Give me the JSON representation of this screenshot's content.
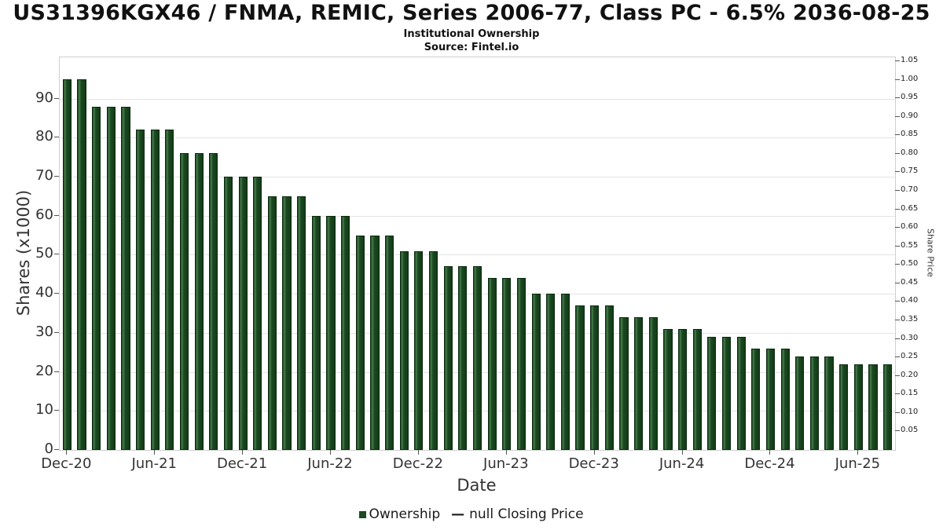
{
  "header": {
    "title": "US31396KGX46 / FNMA, REMIC, Series 2006-77, Class PC - 6.5% 2036-08-25",
    "subtitle": "Institutional Ownership",
    "source": "Source: Fintel.io"
  },
  "chart_data": {
    "type": "bar",
    "title": "Institutional Ownership",
    "xlabel": "Date",
    "ylabel_left": "Shares (x1000)",
    "ylabel_right": "Share Price",
    "categories": [
      "Dec-20",
      "Jan-21",
      "Feb-21",
      "Mar-21",
      "Apr-21",
      "May-21",
      "Jun-21",
      "Jul-21",
      "Aug-21",
      "Sep-21",
      "Oct-21",
      "Nov-21",
      "Dec-21",
      "Jan-22",
      "Feb-22",
      "Mar-22",
      "Apr-22",
      "May-22",
      "Jun-22",
      "Jul-22",
      "Aug-22",
      "Sep-22",
      "Oct-22",
      "Nov-22",
      "Dec-22",
      "Jan-23",
      "Feb-23",
      "Mar-23",
      "Apr-23",
      "May-23",
      "Jun-23",
      "Jul-23",
      "Aug-23",
      "Sep-23",
      "Oct-23",
      "Nov-23",
      "Dec-23",
      "Jan-24",
      "Feb-24",
      "Mar-24",
      "Apr-24",
      "May-24",
      "Jun-24",
      "Jul-24",
      "Aug-24",
      "Sep-24",
      "Oct-24",
      "Nov-24",
      "Dec-24",
      "Jan-25",
      "Feb-25",
      "Mar-25",
      "Apr-25",
      "May-25",
      "Jun-25",
      "Jul-25",
      "Aug-25"
    ],
    "values": [
      95,
      95,
      88,
      88,
      88,
      82,
      82,
      82,
      76,
      76,
      76,
      70,
      70,
      70,
      65,
      65,
      65,
      60,
      60,
      60,
      55,
      55,
      55,
      51,
      51,
      51,
      47,
      47,
      47,
      44,
      44,
      44,
      40,
      40,
      40,
      37,
      37,
      37,
      34,
      34,
      34,
      31,
      31,
      31,
      29,
      29,
      29,
      26,
      26,
      26,
      24,
      24,
      24,
      22,
      22,
      22,
      22
    ],
    "bar_color": "#1c4a21",
    "ylim_left": [
      0,
      100.6
    ],
    "ylim_right": [
      0,
      1.0606
    ],
    "y_ticks_left": [
      0,
      10,
      20,
      30,
      40,
      50,
      60,
      70,
      80,
      90
    ],
    "y_ticks_right": [
      0.05,
      0.1,
      0.15,
      0.2,
      0.25,
      0.3,
      0.35,
      0.4,
      0.45,
      0.5,
      0.55,
      0.6,
      0.65,
      0.7,
      0.75,
      0.8,
      0.85,
      0.9,
      0.95,
      1.0,
      1.05
    ],
    "x_ticks": [
      {
        "label": "Dec-20",
        "index": 0
      },
      {
        "label": "Jun-21",
        "index": 6
      },
      {
        "label": "Dec-21",
        "index": 12
      },
      {
        "label": "Jun-22",
        "index": 18
      },
      {
        "label": "Dec-22",
        "index": 24
      },
      {
        "label": "Jun-23",
        "index": 30
      },
      {
        "label": "Dec-23",
        "index": 36
      },
      {
        "label": "Jun-24",
        "index": 42
      },
      {
        "label": "Dec-24",
        "index": 48
      },
      {
        "label": "Jun-25",
        "index": 54
      }
    ],
    "grid": true,
    "legend_position": "bottom",
    "legend": [
      {
        "label": "Ownership",
        "color": "#1c4a21"
      },
      {
        "label": "null Closing Price",
        "symbol": "—"
      }
    ]
  }
}
